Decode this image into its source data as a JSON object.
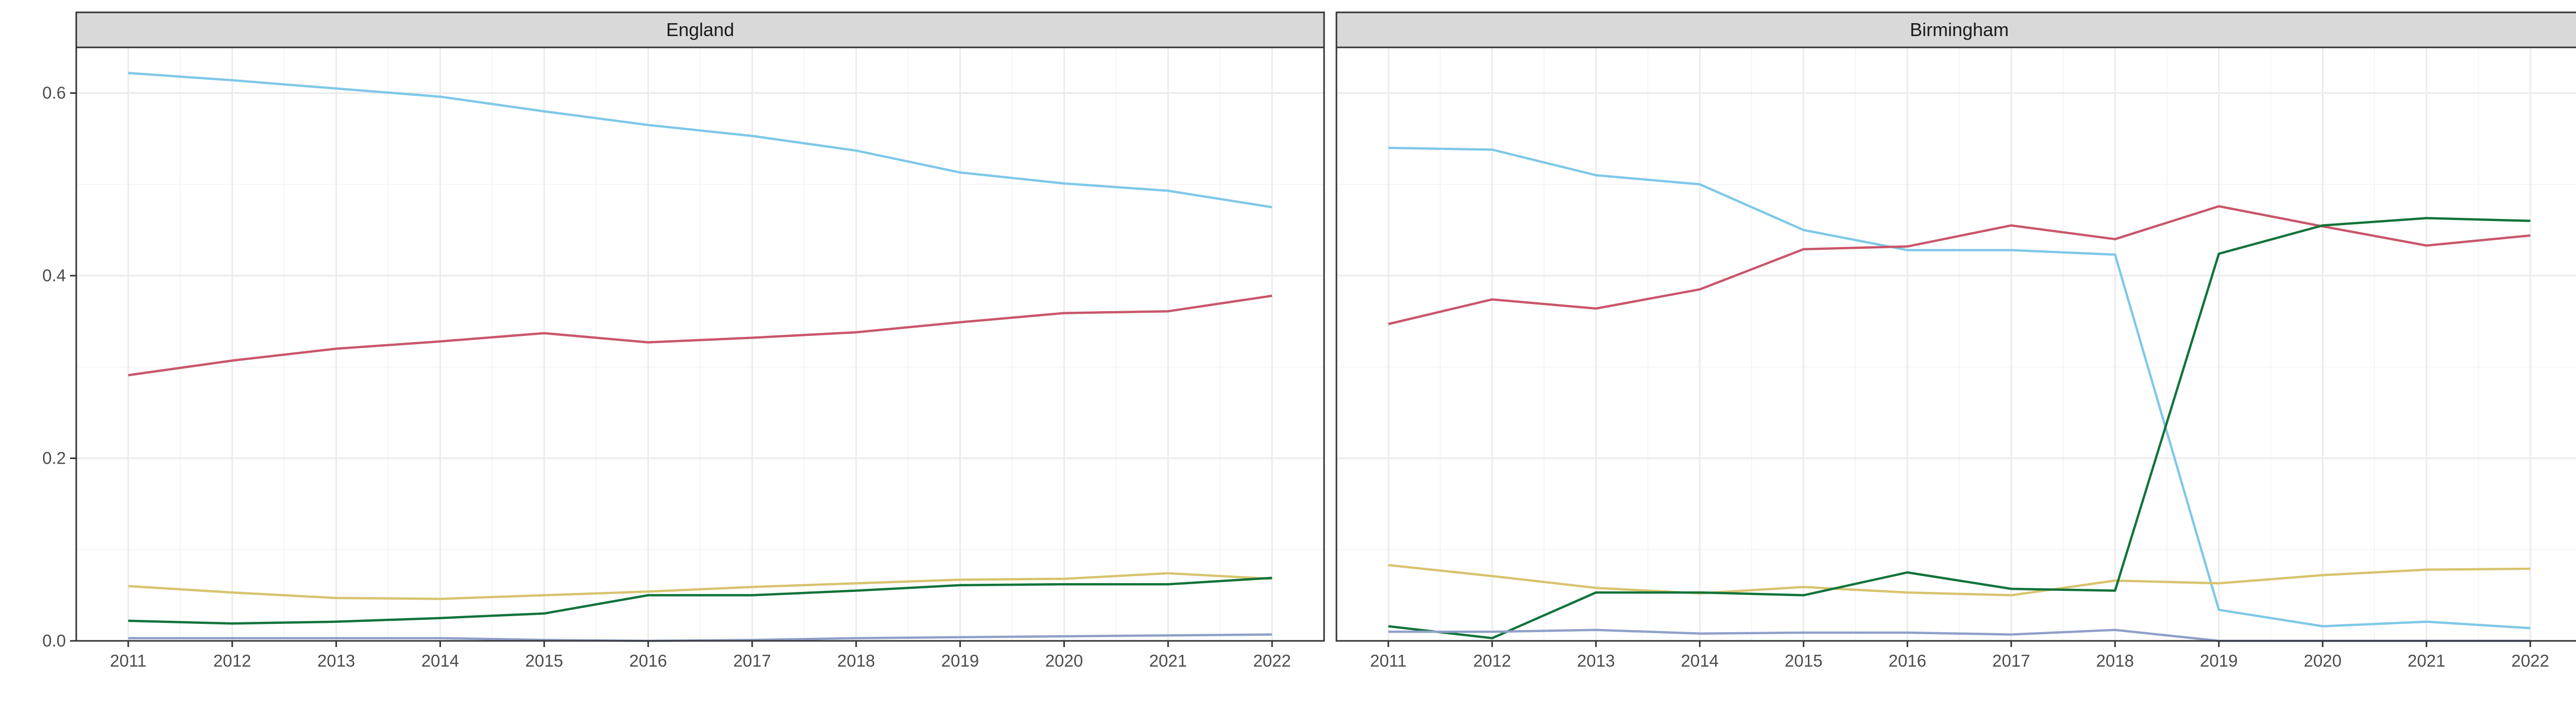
{
  "colors": {
    "background": "#ffffff",
    "strip_fill": "#d9d9d9",
    "panel_border": "#333333",
    "grid_major": "#ebebeb",
    "grid_minor": "#f5f5f5",
    "tick_text": "#4d4d4d"
  },
  "chart_data": [
    {
      "type": "line",
      "title": "England",
      "xlabel": "",
      "ylabel": "",
      "x": [
        2011,
        2012,
        2013,
        2014,
        2015,
        2016,
        2017,
        2018,
        2019,
        2020,
        2021,
        2022
      ],
      "xlim": [
        2010.5,
        2022.5
      ],
      "ylim": [
        0,
        0.65
      ],
      "yticks": [
        0.0,
        0.2,
        0.4,
        0.6
      ],
      "ytick_labels": [
        "0.0",
        "0.2",
        "0.4",
        "0.6"
      ],
      "grid": true,
      "legend": "none",
      "series": [
        {
          "color": "#7ec8e8",
          "values": [
            0.622,
            0.614,
            0.605,
            0.596,
            0.58,
            0.565,
            0.553,
            0.537,
            0.513,
            0.501,
            0.493,
            0.475
          ]
        },
        {
          "color": "#c9566b",
          "values": [
            0.291,
            0.307,
            0.32,
            0.328,
            0.337,
            0.327,
            0.332,
            0.338,
            0.349,
            0.359,
            0.361,
            0.378
          ]
        },
        {
          "color": "#d8c36e",
          "values": [
            0.06,
            0.053,
            0.047,
            0.046,
            0.05,
            0.054,
            0.059,
            0.063,
            0.067,
            0.068,
            0.074,
            0.068
          ]
        },
        {
          "color": "#11733a",
          "values": [
            0.022,
            0.019,
            0.021,
            0.025,
            0.03,
            0.05,
            0.05,
            0.055,
            0.061,
            0.062,
            0.062,
            0.069
          ]
        },
        {
          "color": "#8fa0c8",
          "values": [
            0.003,
            0.003,
            0.003,
            0.003,
            0.001,
            0.0,
            0.001,
            0.003,
            0.004,
            0.005,
            0.006,
            0.007
          ]
        }
      ]
    },
    {
      "type": "line",
      "title": "Birmingham",
      "xlabel": "",
      "ylabel": "",
      "x": [
        2011,
        2012,
        2013,
        2014,
        2015,
        2016,
        2017,
        2018,
        2019,
        2020,
        2021,
        2022
      ],
      "xlim": [
        2010.5,
        2022.5
      ],
      "ylim": [
        0,
        0.65
      ],
      "yticks": [
        0.0,
        0.2,
        0.4,
        0.6
      ],
      "grid": true,
      "legend": "none",
      "series": [
        {
          "color": "#7ec8e8",
          "values": [
            0.54,
            0.538,
            0.51,
            0.5,
            0.45,
            0.428,
            0.428,
            0.423,
            0.034,
            0.016,
            0.021,
            0.014
          ]
        },
        {
          "color": "#c9566b",
          "values": [
            0.347,
            0.374,
            0.364,
            0.385,
            0.429,
            0.432,
            0.455,
            0.44,
            0.476,
            0.454,
            0.433,
            0.444
          ]
        },
        {
          "color": "#d8c36e",
          "values": [
            0.083,
            0.071,
            0.058,
            0.052,
            0.059,
            0.053,
            0.05,
            0.066,
            0.063,
            0.072,
            0.078,
            0.079
          ]
        },
        {
          "color": "#11733a",
          "values": [
            0.016,
            0.003,
            0.053,
            0.053,
            0.05,
            0.075,
            0.057,
            0.055,
            0.424,
            0.455,
            0.463,
            0.46
          ]
        },
        {
          "color": "#8fa0c8",
          "values": [
            0.01,
            0.01,
            0.012,
            0.008,
            0.009,
            0.009,
            0.007,
            0.012,
            0.0,
            0.0,
            0.0,
            0.0
          ]
        }
      ]
    }
  ]
}
